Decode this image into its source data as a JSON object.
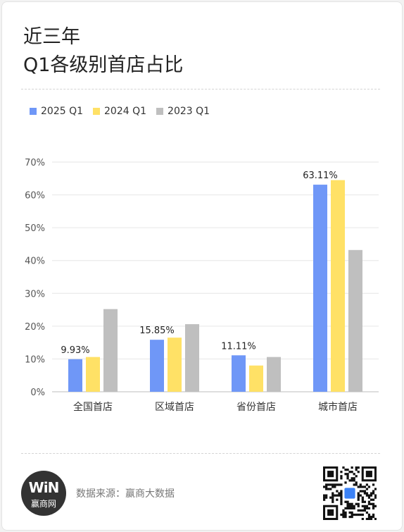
{
  "title_line1": "近三年",
  "title_line2": "Q1各级别首店占比",
  "source_text": "数据来源：赢商大数据",
  "logo": {
    "mark": "WiN",
    "name": "赢商网"
  },
  "colors": {
    "s2025": "#6f97f7",
    "s2024": "#ffe166",
    "s2023": "#bfbfbf"
  },
  "chart_data": {
    "type": "bar",
    "categories": [
      "全国首店",
      "区域首店",
      "省份首店",
      "城市首店"
    ],
    "series": [
      {
        "name": "2025 Q1",
        "values": [
          9.93,
          15.85,
          11.11,
          63.11
        ],
        "labels": [
          "9.93%",
          "15.85%",
          "11.11%",
          "63.11%"
        ]
      },
      {
        "name": "2024 Q1",
        "values": [
          10.6,
          16.5,
          8.0,
          64.5
        ]
      },
      {
        "name": "2023 Q1",
        "values": [
          25.2,
          20.6,
          10.6,
          43.2
        ]
      }
    ],
    "yticks": [
      "0%",
      "10%",
      "20%",
      "30%",
      "40%",
      "50%",
      "60%",
      "70%"
    ],
    "ylim": [
      0,
      70
    ],
    "grid": true,
    "legend": "top-left"
  }
}
